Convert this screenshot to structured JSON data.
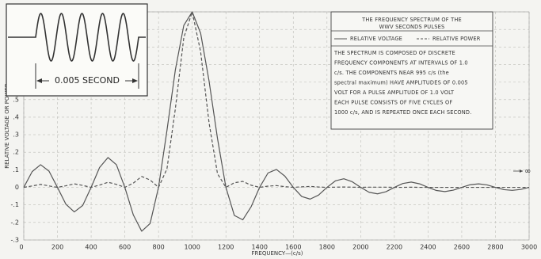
{
  "chart_data": {
    "type": "line",
    "title": [
      "THE FREQUENCY SPECTRUM OF THE",
      "WWV SECONDS PULSES"
    ],
    "description": [
      "THE SPECTRUM IS COMPOSED OF DISCRETE",
      "FREQUENCY COMPONENTS AT INTERVALS OF 1.0",
      "c/s. THE COMPONENTS NEAR 995 c/s (the",
      "spectral maximum) HAVE AMPLITUDES OF 0.005",
      "VOLT FOR A PULSE AMPLITUDE OF 1.0 VOLT",
      "EACH PULSE CONSISTS OF FIVE CYCLES OF",
      "1000 c/s, AND IS REPEATED ONCE EACH SECOND."
    ],
    "inset_label": "0.005 SECOND",
    "annotation": "∞",
    "xlabel": "FREQUENCY—(c/s)",
    "ylabel": "RELATIVE VOLTAGE OR POWER",
    "x": [
      0,
      50,
      100,
      150,
      200,
      250,
      300,
      350,
      400,
      450,
      500,
      550,
      600,
      650,
      700,
      750,
      800,
      850,
      900,
      950,
      1000,
      1050,
      1100,
      1150,
      1200,
      1250,
      1300,
      1350,
      1400,
      1450,
      1500,
      1550,
      1600,
      1650,
      1700,
      1750,
      1800,
      1850,
      1900,
      1950,
      2000,
      2050,
      2100,
      2150,
      2200,
      2250,
      2300,
      2350,
      2400,
      2450,
      2500,
      2550,
      2600,
      2650,
      2700,
      2750,
      2800,
      2850,
      2900,
      2950,
      3000
    ],
    "series": [
      {
        "name": "RELATIVE VOLTAGE",
        "color": "#555555",
        "dashed": false,
        "values": [
          0,
          0.09,
          0.129,
          0.092,
          0,
          -0.096,
          -0.14,
          -0.103,
          0,
          0.113,
          0.17,
          0.129,
          0,
          -0.156,
          -0.25,
          -0.206,
          0,
          0.324,
          0.67,
          0.923,
          1,
          0.878,
          0.606,
          0.279,
          0,
          -0.16,
          -0.185,
          -0.11,
          0,
          0.082,
          0.102,
          0.064,
          0,
          -0.052,
          -0.067,
          -0.044,
          0,
          0.037,
          0.049,
          0.032,
          0,
          -0.028,
          -0.037,
          -0.025,
          0,
          0.022,
          0.03,
          0.02,
          0,
          -0.018,
          -0.024,
          -0.016,
          0,
          0.015,
          0.02,
          0.014,
          0,
          -0.013,
          -0.017,
          -0.012,
          0
        ]
      },
      {
        "name": "RELATIVE POWER",
        "color": "#555555",
        "dashed": true,
        "values": [
          0,
          0.008,
          0.017,
          0.008,
          0,
          0.009,
          0.02,
          0.011,
          0,
          0.013,
          0.029,
          0.017,
          0,
          0.024,
          0.062,
          0.042,
          0,
          0.105,
          0.449,
          0.853,
          1,
          0.772,
          0.368,
          0.078,
          0,
          0.026,
          0.034,
          0.012,
          0,
          0.007,
          0.01,
          0.004,
          0,
          0.003,
          0.005,
          0.002,
          0,
          0.001,
          0.002,
          0.001,
          0,
          0.001,
          0.001,
          0.001,
          0,
          0,
          0.001,
          0,
          0,
          0,
          0,
          0,
          0,
          0,
          0,
          0,
          0,
          0,
          0,
          0,
          0
        ]
      }
    ],
    "xlim": [
      0,
      3000
    ],
    "xticks": [
      0,
      200,
      400,
      600,
      800,
      1000,
      1200,
      1400,
      1600,
      1800,
      2000,
      2200,
      2400,
      2600,
      2800,
      3000
    ],
    "ylim": [
      -0.3,
      1.0
    ],
    "yticks": [
      {
        "value": -0.3,
        "label": "-.3"
      },
      {
        "value": -0.2,
        "label": "-.2"
      },
      {
        "value": -0.1,
        "label": "-.1"
      },
      0,
      {
        "value": 0.1,
        "label": ".1"
      },
      {
        "value": 0.2,
        "label": ".2"
      },
      {
        "value": 0.3,
        "label": ".3"
      },
      {
        "value": 0.4,
        "label": ".4"
      },
      {
        "value": 0.5,
        "label": ".5"
      },
      {
        "value": 0.6,
        "label": ".6"
      },
      {
        "value": 0.7,
        "label": ".7"
      },
      {
        "value": 0.8,
        "label": ".8"
      },
      {
        "value": 0.9,
        "label": ".9"
      },
      {
        "value": 1.0,
        "label": "1.0"
      }
    ],
    "grid": true
  }
}
